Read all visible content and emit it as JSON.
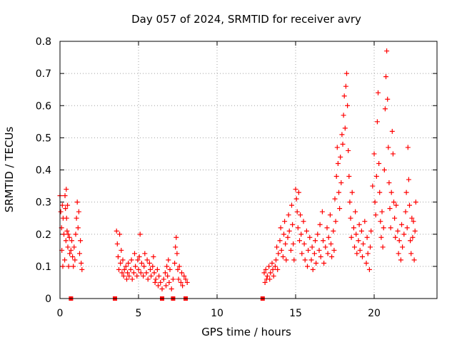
{
  "chart_data": {
    "type": "scatter",
    "title": "Day 057 of 2024, SRMTID for receiver avry",
    "xlabel": "GPS time / hours",
    "ylabel": "SRMTID / TECUs",
    "xlim": [
      0,
      24
    ],
    "ylim": [
      0,
      0.8
    ],
    "xticks": [
      0,
      5,
      10,
      15,
      20
    ],
    "yticks": [
      0,
      0.1,
      0.2,
      0.3,
      0.4,
      0.5,
      0.6,
      0.7,
      0.8
    ],
    "grid": true,
    "marker": "+",
    "color": "#ff0000",
    "series": [
      {
        "name": "SRMTID",
        "points": [
          [
            0.0,
            0.32
          ],
          [
            0.05,
            0.27
          ],
          [
            0.1,
            0.22
          ],
          [
            0.12,
            0.15
          ],
          [
            0.15,
            0.29
          ],
          [
            0.18,
            0.1
          ],
          [
            0.2,
            0.25
          ],
          [
            0.25,
            0.2
          ],
          [
            0.3,
            0.12
          ],
          [
            0.32,
            0.32
          ],
          [
            0.35,
            0.28
          ],
          [
            0.38,
            0.18
          ],
          [
            0.4,
            0.34
          ],
          [
            0.42,
            0.25
          ],
          [
            0.45,
            0.21
          ],
          [
            0.48,
            0.29
          ],
          [
            0.5,
            0.16
          ],
          [
            0.52,
            0.2
          ],
          [
            0.55,
            0.1
          ],
          [
            0.6,
            0.19
          ],
          [
            0.62,
            0.14
          ],
          [
            0.7,
            0.15
          ],
          [
            0.75,
            0.18
          ],
          [
            0.8,
            0.13
          ],
          [
            0.85,
            0.1
          ],
          [
            0.9,
            0.16
          ],
          [
            0.95,
            0.12
          ],
          [
            1.0,
            0.2
          ],
          [
            1.05,
            0.25
          ],
          [
            1.1,
            0.3
          ],
          [
            1.15,
            0.22
          ],
          [
            1.2,
            0.27
          ],
          [
            1.25,
            0.14
          ],
          [
            1.3,
            0.18
          ],
          [
            1.35,
            0.11
          ],
          [
            1.4,
            0.09
          ],
          [
            3.6,
            0.21
          ],
          [
            3.65,
            0.17
          ],
          [
            3.7,
            0.13
          ],
          [
            3.75,
            0.09
          ],
          [
            3.8,
            0.2
          ],
          [
            3.85,
            0.11
          ],
          [
            3.9,
            0.15
          ],
          [
            3.95,
            0.08
          ],
          [
            4.0,
            0.12
          ],
          [
            4.05,
            0.07
          ],
          [
            4.1,
            0.09
          ],
          [
            4.2,
            0.1
          ],
          [
            4.25,
            0.06
          ],
          [
            4.3,
            0.08
          ],
          [
            4.35,
            0.11
          ],
          [
            4.4,
            0.07
          ],
          [
            4.5,
            0.09
          ],
          [
            4.55,
            0.12
          ],
          [
            4.6,
            0.06
          ],
          [
            4.7,
            0.08
          ],
          [
            4.75,
            0.14
          ],
          [
            4.8,
            0.1
          ],
          [
            4.9,
            0.07
          ],
          [
            4.95,
            0.12
          ],
          [
            5.0,
            0.09
          ],
          [
            5.05,
            0.13
          ],
          [
            5.1,
            0.2
          ],
          [
            5.15,
            0.08
          ],
          [
            5.2,
            0.11
          ],
          [
            5.3,
            0.07
          ],
          [
            5.35,
            0.1
          ],
          [
            5.4,
            0.14
          ],
          [
            5.5,
            0.08
          ],
          [
            5.55,
            0.12
          ],
          [
            5.6,
            0.06
          ],
          [
            5.7,
            0.11
          ],
          [
            5.75,
            0.09
          ],
          [
            5.8,
            0.07
          ],
          [
            5.9,
            0.1
          ],
          [
            5.95,
            0.13
          ],
          [
            6.0,
            0.08
          ],
          [
            6.05,
            0.05
          ],
          [
            6.1,
            0.06
          ],
          [
            6.2,
            0.09
          ],
          [
            6.25,
            0.04
          ],
          [
            6.3,
            0.07
          ],
          [
            6.4,
            0.05
          ],
          [
            6.5,
            0.03
          ],
          [
            6.6,
            0.06
          ],
          [
            6.7,
            0.08
          ],
          [
            6.75,
            0.04
          ],
          [
            6.8,
            0.1
          ],
          [
            6.85,
            0.07
          ],
          [
            6.9,
            0.12
          ],
          [
            6.95,
            0.05
          ],
          [
            7.0,
            0.09
          ],
          [
            7.1,
            0.03
          ],
          [
            7.2,
            0.06
          ],
          [
            7.3,
            0.11
          ],
          [
            7.35,
            0.16
          ],
          [
            7.4,
            0.19
          ],
          [
            7.45,
            0.14
          ],
          [
            7.5,
            0.09
          ],
          [
            7.55,
            0.06
          ],
          [
            7.6,
            0.1
          ],
          [
            7.7,
            0.05
          ],
          [
            7.75,
            0.08
          ],
          [
            7.8,
            0.04
          ],
          [
            7.9,
            0.07
          ],
          [
            8.0,
            0.06
          ],
          [
            8.1,
            0.05
          ],
          [
            13.0,
            0.08
          ],
          [
            13.05,
            0.05
          ],
          [
            13.1,
            0.09
          ],
          [
            13.15,
            0.06
          ],
          [
            13.2,
            0.07
          ],
          [
            13.3,
            0.1
          ],
          [
            13.35,
            0.06
          ],
          [
            13.4,
            0.08
          ],
          [
            13.5,
            0.11
          ],
          [
            13.55,
            0.09
          ],
          [
            13.6,
            0.07
          ],
          [
            13.7,
            0.1
          ],
          [
            13.75,
            0.12
          ],
          [
            13.8,
            0.16
          ],
          [
            13.85,
            0.09
          ],
          [
            13.9,
            0.14
          ],
          [
            14.0,
            0.18
          ],
          [
            14.05,
            0.22
          ],
          [
            14.1,
            0.15
          ],
          [
            14.2,
            0.13
          ],
          [
            14.25,
            0.2
          ],
          [
            14.3,
            0.24
          ],
          [
            14.35,
            0.17
          ],
          [
            14.4,
            0.12
          ],
          [
            14.5,
            0.19
          ],
          [
            14.55,
            0.26
          ],
          [
            14.6,
            0.21
          ],
          [
            14.7,
            0.15
          ],
          [
            14.75,
            0.29
          ],
          [
            14.8,
            0.23
          ],
          [
            14.85,
            0.17
          ],
          [
            14.9,
            0.12
          ],
          [
            15.0,
            0.34
          ],
          [
            15.05,
            0.31
          ],
          [
            15.1,
            0.27
          ],
          [
            15.15,
            0.22
          ],
          [
            15.2,
            0.33
          ],
          [
            15.25,
            0.18
          ],
          [
            15.3,
            0.26
          ],
          [
            15.35,
            0.2
          ],
          [
            15.4,
            0.14
          ],
          [
            15.5,
            0.24
          ],
          [
            15.55,
            0.17
          ],
          [
            15.6,
            0.12
          ],
          [
            15.7,
            0.21
          ],
          [
            15.75,
            0.1
          ],
          [
            15.8,
            0.15
          ],
          [
            15.9,
            0.19
          ],
          [
            16.0,
            0.12
          ],
          [
            16.05,
            0.16
          ],
          [
            16.1,
            0.09
          ],
          [
            16.2,
            0.14
          ],
          [
            16.25,
            0.18
          ],
          [
            16.3,
            0.11
          ],
          [
            16.4,
            0.2
          ],
          [
            16.5,
            0.15
          ],
          [
            16.55,
            0.23
          ],
          [
            16.6,
            0.13
          ],
          [
            16.7,
            0.27
          ],
          [
            16.75,
            0.18
          ],
          [
            16.8,
            0.11
          ],
          [
            16.9,
            0.16
          ],
          [
            17.0,
            0.22
          ],
          [
            17.05,
            0.14
          ],
          [
            17.1,
            0.19
          ],
          [
            17.2,
            0.26
          ],
          [
            17.25,
            0.17
          ],
          [
            17.3,
            0.13
          ],
          [
            17.4,
            0.21
          ],
          [
            17.45,
            0.15
          ],
          [
            17.5,
            0.31
          ],
          [
            17.55,
            0.24
          ],
          [
            17.6,
            0.38
          ],
          [
            17.65,
            0.47
          ],
          [
            17.7,
            0.42
          ],
          [
            17.75,
            0.33
          ],
          [
            17.8,
            0.28
          ],
          [
            17.85,
            0.44
          ],
          [
            17.9,
            0.36
          ],
          [
            17.95,
            0.51
          ],
          [
            18.0,
            0.48
          ],
          [
            18.05,
            0.57
          ],
          [
            18.1,
            0.63
          ],
          [
            18.15,
            0.53
          ],
          [
            18.2,
            0.66
          ],
          [
            18.25,
            0.7
          ],
          [
            18.3,
            0.6
          ],
          [
            18.35,
            0.46
          ],
          [
            18.4,
            0.38
          ],
          [
            18.45,
            0.3
          ],
          [
            18.5,
            0.25
          ],
          [
            18.55,
            0.19
          ],
          [
            18.6,
            0.33
          ],
          [
            18.7,
            0.22
          ],
          [
            18.75,
            0.16
          ],
          [
            18.8,
            0.27
          ],
          [
            18.85,
            0.2
          ],
          [
            18.9,
            0.14
          ],
          [
            19.0,
            0.18
          ],
          [
            19.05,
            0.23
          ],
          [
            19.1,
            0.15
          ],
          [
            19.2,
            0.21
          ],
          [
            19.25,
            0.13
          ],
          [
            19.3,
            0.17
          ],
          [
            19.4,
            0.24
          ],
          [
            19.5,
            0.11
          ],
          [
            19.55,
            0.19
          ],
          [
            19.6,
            0.14
          ],
          [
            19.7,
            0.09
          ],
          [
            19.75,
            0.16
          ],
          [
            19.8,
            0.21
          ],
          [
            19.9,
            0.35
          ],
          [
            20.0,
            0.45
          ],
          [
            20.05,
            0.3
          ],
          [
            20.1,
            0.26
          ],
          [
            20.15,
            0.38
          ],
          [
            20.2,
            0.55
          ],
          [
            20.25,
            0.64
          ],
          [
            20.3,
            0.42
          ],
          [
            20.35,
            0.33
          ],
          [
            20.4,
            0.24
          ],
          [
            20.45,
            0.19
          ],
          [
            20.5,
            0.27
          ],
          [
            20.55,
            0.16
          ],
          [
            20.6,
            0.22
          ],
          [
            20.65,
            0.4
          ],
          [
            20.7,
            0.59
          ],
          [
            20.75,
            0.69
          ],
          [
            20.8,
            0.77
          ],
          [
            20.85,
            0.62
          ],
          [
            20.9,
            0.47
          ],
          [
            20.95,
            0.36
          ],
          [
            21.0,
            0.28
          ],
          [
            21.05,
            0.22
          ],
          [
            21.1,
            0.33
          ],
          [
            21.15,
            0.52
          ],
          [
            21.2,
            0.45
          ],
          [
            21.25,
            0.3
          ],
          [
            21.3,
            0.25
          ],
          [
            21.35,
            0.19
          ],
          [
            21.4,
            0.29
          ],
          [
            21.5,
            0.21
          ],
          [
            21.55,
            0.14
          ],
          [
            21.6,
            0.18
          ],
          [
            21.7,
            0.12
          ],
          [
            21.75,
            0.23
          ],
          [
            21.8,
            0.16
          ],
          [
            21.9,
            0.2
          ],
          [
            22.0,
            0.27
          ],
          [
            22.05,
            0.33
          ],
          [
            22.1,
            0.22
          ],
          [
            22.15,
            0.47
          ],
          [
            22.2,
            0.37
          ],
          [
            22.25,
            0.29
          ],
          [
            22.3,
            0.18
          ],
          [
            22.35,
            0.14
          ],
          [
            22.4,
            0.25
          ],
          [
            22.45,
            0.19
          ],
          [
            22.5,
            0.24
          ],
          [
            22.55,
            0.12
          ],
          [
            22.6,
            0.21
          ],
          [
            22.65,
            0.3
          ]
        ]
      },
      {
        "name": "data-gap markers",
        "points": [
          [
            0.7,
            0.0
          ],
          [
            3.5,
            0.0
          ],
          [
            6.5,
            0.0
          ],
          [
            7.2,
            0.0
          ],
          [
            8.0,
            0.0
          ],
          [
            12.9,
            0.0
          ]
        ]
      }
    ]
  }
}
